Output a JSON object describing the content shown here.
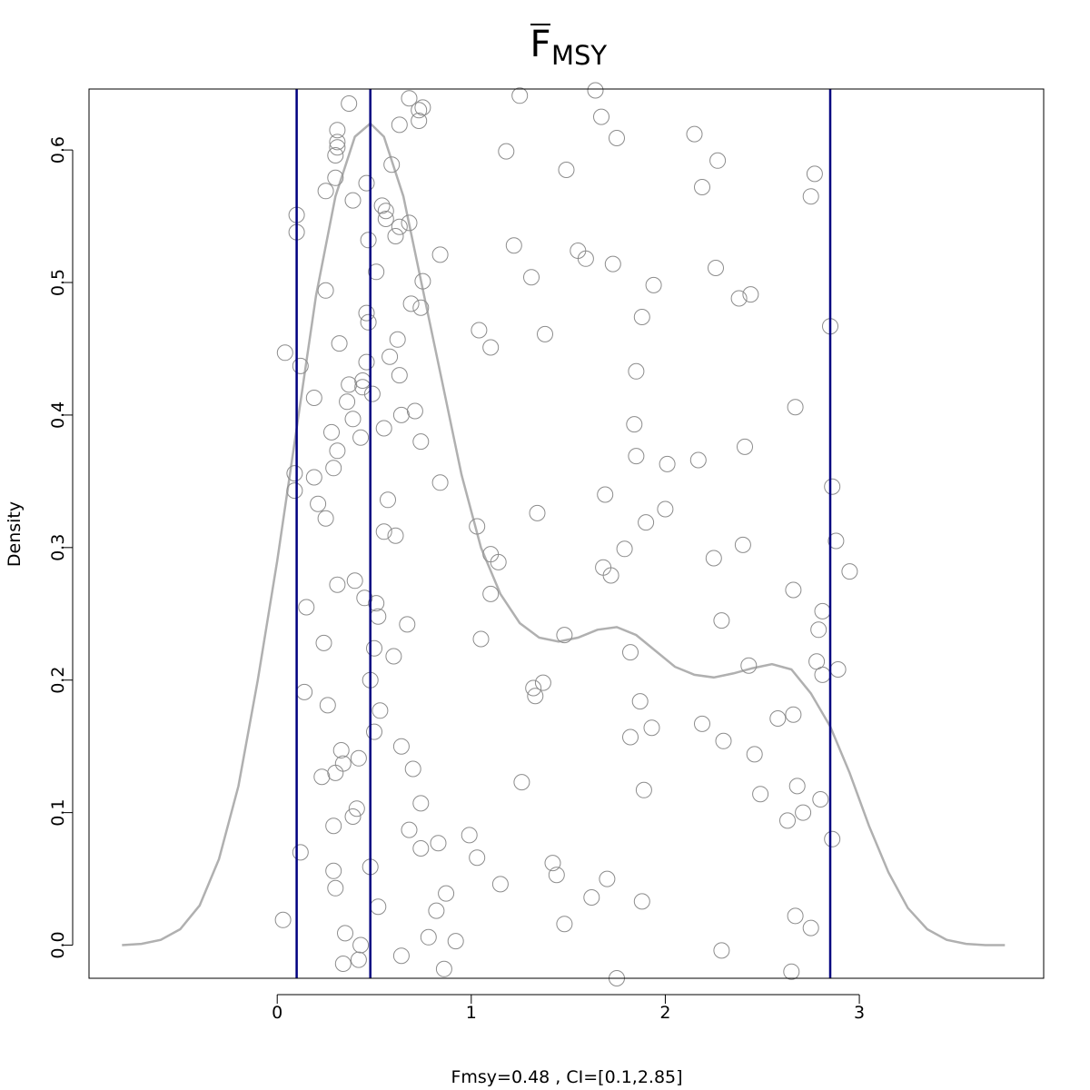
{
  "chart_data": {
    "type": "scatter",
    "title": "F",
    "title_subscript": "MSY",
    "title_overline": true,
    "xlabel": "Fmsy=0.48 , CI=[0.1,2.85]",
    "ylabel": "Density",
    "xlim": [
      -0.97,
      3.95
    ],
    "ylim": [
      -0.025,
      0.646
    ],
    "x_ticks": [
      0,
      1,
      2,
      3
    ],
    "x_tick_labels": [
      "0",
      "1",
      "2",
      "3"
    ],
    "y_ticks": [
      0.0,
      0.1,
      0.2,
      0.3,
      0.4,
      0.5,
      0.6
    ],
    "y_tick_labels": [
      "0.0",
      "0.1",
      "0.2",
      "0.3",
      "0.4",
      "0.5",
      "0.6"
    ],
    "grid": false,
    "colors": {
      "points": "#8c8c8c",
      "density": "#b0b0b0",
      "vlines": "#000080"
    },
    "vlines": [
      0.1,
      0.48,
      2.85
    ],
    "density_curve": [
      [
        -0.8,
        0.0
      ],
      [
        -0.7,
        0.001
      ],
      [
        -0.6,
        0.004
      ],
      [
        -0.5,
        0.012
      ],
      [
        -0.4,
        0.03
      ],
      [
        -0.3,
        0.065
      ],
      [
        -0.2,
        0.12
      ],
      [
        -0.1,
        0.2
      ],
      [
        0.0,
        0.29
      ],
      [
        0.1,
        0.39
      ],
      [
        0.2,
        0.49
      ],
      [
        0.3,
        0.565
      ],
      [
        0.4,
        0.61
      ],
      [
        0.48,
        0.62
      ],
      [
        0.55,
        0.61
      ],
      [
        0.65,
        0.565
      ],
      [
        0.75,
        0.495
      ],
      [
        0.85,
        0.425
      ],
      [
        0.95,
        0.355
      ],
      [
        1.05,
        0.3
      ],
      [
        1.15,
        0.265
      ],
      [
        1.25,
        0.243
      ],
      [
        1.35,
        0.232
      ],
      [
        1.45,
        0.229
      ],
      [
        1.55,
        0.232
      ],
      [
        1.65,
        0.238
      ],
      [
        1.75,
        0.24
      ],
      [
        1.85,
        0.234
      ],
      [
        1.95,
        0.222
      ],
      [
        2.05,
        0.21
      ],
      [
        2.15,
        0.204
      ],
      [
        2.25,
        0.202
      ],
      [
        2.35,
        0.205
      ],
      [
        2.45,
        0.209
      ],
      [
        2.55,
        0.212
      ],
      [
        2.65,
        0.208
      ],
      [
        2.75,
        0.19
      ],
      [
        2.85,
        0.165
      ],
      [
        2.95,
        0.13
      ],
      [
        3.05,
        0.09
      ],
      [
        3.15,
        0.055
      ],
      [
        3.25,
        0.028
      ],
      [
        3.35,
        0.012
      ],
      [
        3.45,
        0.004
      ],
      [
        3.55,
        0.001
      ],
      [
        3.65,
        0.0
      ],
      [
        3.75,
        0.0
      ]
    ],
    "points": [
      [
        0.03,
        0.019
      ],
      [
        0.04,
        0.447
      ],
      [
        0.09,
        0.356
      ],
      [
        0.09,
        0.343
      ],
      [
        0.1,
        0.551
      ],
      [
        0.1,
        0.538
      ],
      [
        0.12,
        0.437
      ],
      [
        0.12,
        0.07
      ],
      [
        0.14,
        0.191
      ],
      [
        0.15,
        0.255
      ],
      [
        0.19,
        0.413
      ],
      [
        0.19,
        0.353
      ],
      [
        0.21,
        0.333
      ],
      [
        0.23,
        0.127
      ],
      [
        0.24,
        0.228
      ],
      [
        0.25,
        0.494
      ],
      [
        0.25,
        0.322
      ],
      [
        0.25,
        0.569
      ],
      [
        0.26,
        0.181
      ],
      [
        0.28,
        0.387
      ],
      [
        0.29,
        0.36
      ],
      [
        0.29,
        0.09
      ],
      [
        0.29,
        0.056
      ],
      [
        0.3,
        0.579
      ],
      [
        0.3,
        0.596
      ],
      [
        0.3,
        0.13
      ],
      [
        0.3,
        0.043
      ],
      [
        0.31,
        0.606
      ],
      [
        0.31,
        0.615
      ],
      [
        0.31,
        0.602
      ],
      [
        0.31,
        0.373
      ],
      [
        0.31,
        0.272
      ],
      [
        0.32,
        0.454
      ],
      [
        0.33,
        0.147
      ],
      [
        0.34,
        0.137
      ],
      [
        0.34,
        -0.014
      ],
      [
        0.35,
        0.009
      ],
      [
        0.36,
        0.41
      ],
      [
        0.37,
        0.635
      ],
      [
        0.37,
        0.423
      ],
      [
        0.39,
        0.397
      ],
      [
        0.39,
        0.562
      ],
      [
        0.39,
        0.097
      ],
      [
        0.4,
        0.275
      ],
      [
        0.41,
        0.103
      ],
      [
        0.42,
        0.141
      ],
      [
        0.42,
        -0.011
      ],
      [
        0.43,
        0.383
      ],
      [
        0.43,
        0.0
      ],
      [
        0.44,
        0.421
      ],
      [
        0.44,
        0.426
      ],
      [
        0.45,
        0.262
      ],
      [
        0.46,
        0.575
      ],
      [
        0.46,
        0.44
      ],
      [
        0.46,
        0.477
      ],
      [
        0.47,
        0.47
      ],
      [
        0.47,
        0.532
      ],
      [
        0.48,
        0.2
      ],
      [
        0.48,
        0.059
      ],
      [
        0.49,
        0.416
      ],
      [
        0.5,
        0.224
      ],
      [
        0.5,
        0.161
      ],
      [
        0.51,
        0.508
      ],
      [
        0.51,
        0.258
      ],
      [
        0.52,
        0.248
      ],
      [
        0.52,
        0.029
      ],
      [
        0.53,
        0.177
      ],
      [
        0.54,
        0.558
      ],
      [
        0.55,
        0.39
      ],
      [
        0.55,
        0.312
      ],
      [
        0.56,
        0.554
      ],
      [
        0.56,
        0.548
      ],
      [
        0.57,
        0.336
      ],
      [
        0.58,
        0.444
      ],
      [
        0.59,
        0.589
      ],
      [
        0.6,
        0.218
      ],
      [
        0.61,
        0.535
      ],
      [
        0.61,
        0.309
      ],
      [
        0.62,
        0.457
      ],
      [
        0.63,
        0.43
      ],
      [
        0.63,
        0.542
      ],
      [
        0.63,
        0.619
      ],
      [
        0.64,
        0.4
      ],
      [
        0.64,
        0.15
      ],
      [
        0.64,
        -0.008
      ],
      [
        0.67,
        0.242
      ],
      [
        0.68,
        0.639
      ],
      [
        0.68,
        0.545
      ],
      [
        0.68,
        0.087
      ],
      [
        0.69,
        0.484
      ],
      [
        0.7,
        0.133
      ],
      [
        0.71,
        0.403
      ],
      [
        0.73,
        0.63
      ],
      [
        0.73,
        0.622
      ],
      [
        0.74,
        0.481
      ],
      [
        0.74,
        0.38
      ],
      [
        0.74,
        0.107
      ],
      [
        0.74,
        0.073
      ],
      [
        0.75,
        0.501
      ],
      [
        0.75,
        0.632
      ],
      [
        0.78,
        0.006
      ],
      [
        0.82,
        0.026
      ],
      [
        0.83,
        0.077
      ],
      [
        0.84,
        0.349
      ],
      [
        0.84,
        0.521
      ],
      [
        0.86,
        -0.018
      ],
      [
        0.87,
        0.039
      ],
      [
        0.92,
        0.003
      ],
      [
        0.99,
        0.083
      ],
      [
        1.03,
        0.316
      ],
      [
        1.03,
        0.066
      ],
      [
        1.04,
        0.464
      ],
      [
        1.05,
        0.231
      ],
      [
        1.1,
        0.295
      ],
      [
        1.1,
        0.265
      ],
      [
        1.1,
        0.451
      ],
      [
        1.14,
        0.289
      ],
      [
        1.15,
        0.046
      ],
      [
        1.18,
        0.599
      ],
      [
        1.22,
        0.528
      ],
      [
        1.25,
        0.641
      ],
      [
        1.26,
        0.123
      ],
      [
        1.31,
        0.504
      ],
      [
        1.32,
        0.194
      ],
      [
        1.33,
        0.188
      ],
      [
        1.34,
        0.326
      ],
      [
        1.37,
        0.198
      ],
      [
        1.38,
        0.461
      ],
      [
        1.42,
        0.062
      ],
      [
        1.44,
        0.053
      ],
      [
        1.48,
        0.234
      ],
      [
        1.48,
        0.016
      ],
      [
        1.49,
        0.585
      ],
      [
        1.55,
        0.524
      ],
      [
        1.59,
        0.518
      ],
      [
        1.62,
        0.036
      ],
      [
        1.64,
        0.645
      ],
      [
        1.67,
        0.625
      ],
      [
        1.68,
        0.285
      ],
      [
        1.69,
        0.34
      ],
      [
        1.7,
        0.05
      ],
      [
        1.72,
        0.279
      ],
      [
        1.73,
        0.514
      ],
      [
        1.75,
        0.609
      ],
      [
        1.75,
        -0.025
      ],
      [
        1.79,
        0.299
      ],
      [
        1.82,
        0.221
      ],
      [
        1.82,
        0.157
      ],
      [
        1.84,
        0.393
      ],
      [
        1.85,
        0.433
      ],
      [
        1.85,
        0.369
      ],
      [
        1.87,
        0.184
      ],
      [
        1.88,
        0.474
      ],
      [
        1.88,
        0.033
      ],
      [
        1.89,
        0.117
      ],
      [
        1.9,
        0.319
      ],
      [
        1.93,
        0.164
      ],
      [
        1.94,
        0.498
      ],
      [
        2.0,
        0.329
      ],
      [
        2.01,
        0.363
      ],
      [
        2.15,
        0.612
      ],
      [
        2.17,
        0.366
      ],
      [
        2.19,
        0.572
      ],
      [
        2.19,
        0.167
      ],
      [
        2.25,
        0.292
      ],
      [
        2.26,
        0.511
      ],
      [
        2.27,
        0.592
      ],
      [
        2.29,
        0.245
      ],
      [
        2.29,
        -0.004
      ],
      [
        2.3,
        0.154
      ],
      [
        2.38,
        0.488
      ],
      [
        2.4,
        0.302
      ],
      [
        2.41,
        0.376
      ],
      [
        2.43,
        0.211
      ],
      [
        2.44,
        0.491
      ],
      [
        2.46,
        0.144
      ],
      [
        2.49,
        0.114
      ],
      [
        2.58,
        0.171
      ],
      [
        2.63,
        0.094
      ],
      [
        2.65,
        -0.02
      ],
      [
        2.66,
        0.268
      ],
      [
        2.66,
        0.174
      ],
      [
        2.67,
        0.406
      ],
      [
        2.67,
        0.022
      ],
      [
        2.68,
        0.12
      ],
      [
        2.71,
        0.1
      ],
      [
        2.75,
        0.565
      ],
      [
        2.75,
        0.013
      ],
      [
        2.77,
        0.582
      ],
      [
        2.78,
        0.214
      ],
      [
        2.79,
        0.238
      ],
      [
        2.8,
        0.11
      ],
      [
        2.81,
        0.252
      ],
      [
        2.81,
        0.204
      ],
      [
        2.85,
        0.467
      ],
      [
        2.86,
        0.08
      ],
      [
        2.86,
        0.346
      ],
      [
        2.88,
        0.305
      ],
      [
        2.89,
        0.208
      ],
      [
        2.95,
        0.282
      ]
    ]
  }
}
